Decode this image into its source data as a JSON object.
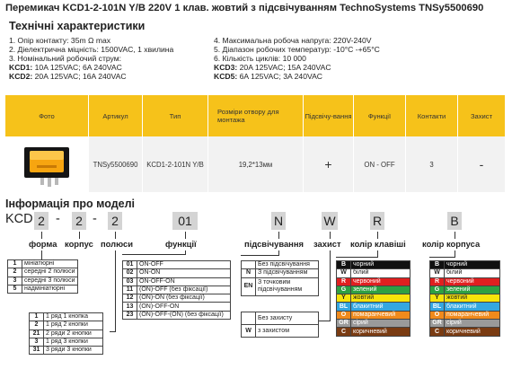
{
  "title": "Перемикач KCD1-2-101N Y/B 220V 1 клав. жовтий з підсвічуванням TechnoSystems TNSy5500690",
  "specs": {
    "heading": "Технічні характеристики",
    "left": [
      "1. Опір контакту: 35m Ω  max",
      "2. Діелектрична міцність:  1500VAC, 1 хвилина",
      "3. Номінальний робочий струм:"
    ],
    "kcd1_label": "KCD1:",
    "kcd1_value": " 10A 125VAC; 6A 240VAC",
    "kcd2_label": "KCD2:",
    "kcd2_value": " 20A 125VAC; 16A 240VAC",
    "right": [
      "4. Максимальна робоча напруга: 220V-240V",
      "5. Діапазон робочих температур: -10°C -+65°C",
      "6. Кількість циклів: 10 000"
    ],
    "kcd3_label": "KCD3:",
    "kcd3_value": " 20A 125VAC; 15A 240VAC",
    "kcd5_label": "KCD5:",
    "kcd5_value": " 6A 125VAC; 3A 240VAC"
  },
  "table": {
    "headers": [
      "Фото",
      "Артикул",
      "Тип",
      "Розміри отвору для монтажа",
      "Підсвічу-вання",
      "Функції",
      "Контакти",
      "Захист"
    ],
    "row": {
      "article": "TNSy5500690",
      "type": "KCD1-2-101N Y/B",
      "size": "19,2*13мм",
      "backlight": "+",
      "function": "ON - OFF",
      "contacts": "3",
      "protection": "-"
    }
  },
  "model": {
    "heading": "Інформація про моделі",
    "prefix": "KCD",
    "parts": [
      "2",
      "-",
      "2",
      "-",
      "2",
      "01",
      "N",
      "W",
      "R",
      "B"
    ],
    "labels": {
      "form": "форма",
      "body": "корпус",
      "poles": "полюси",
      "functions": "функції",
      "backlight": "підсвічування",
      "protection": "захист",
      "key_color": "колір клавіші",
      "body_color": "колір корпуса"
    },
    "form_rows": [
      {
        "k": "1",
        "v": "мініатюрні"
      },
      {
        "k": "2",
        "v": "середні 2 полюси"
      },
      {
        "k": "3",
        "v": "середні 3 полюси"
      },
      {
        "k": "5",
        "v": "надмініатюрні"
      }
    ],
    "function_rows": [
      {
        "k": "01",
        "v": "ON-OFF"
      },
      {
        "k": "02",
        "v": "ON-ON"
      },
      {
        "k": "03",
        "v": "ON-OFF-ON"
      },
      {
        "k": "11",
        "v": "(ON)-OFF (без фіксації)"
      },
      {
        "k": "12",
        "v": "(ON)-ON (без фіксації)"
      },
      {
        "k": "13",
        "v": "(ON)-OFF-ON"
      },
      {
        "k": "23",
        "v": "(ON)-OFF-(ON) (без фіксації)"
      }
    ],
    "pole_rows": [
      {
        "k": "1",
        "v": "1 ряд 1 кнопка"
      },
      {
        "k": "2",
        "v": "1 ряд 2 кнопки"
      },
      {
        "k": "21",
        "v": "2 ряди 2 кнопки"
      },
      {
        "k": "3",
        "v": "1 ряд 3 кнопки"
      },
      {
        "k": "31",
        "v": "3 ряди 3 кнопки"
      }
    ],
    "backlight_rows": [
      {
        "k": "",
        "v": "Без підсвічування"
      },
      {
        "k": "N",
        "v": "З підсвічуванням"
      },
      {
        "k": "EN",
        "v": "З точковим підсвічуванням"
      }
    ],
    "protection_rows": [
      {
        "k": "",
        "v": "Без захисту"
      },
      {
        "k": "W",
        "v": "з захистом"
      }
    ],
    "key_colors": [
      {
        "k": "B",
        "v": "чорний",
        "color": "#111111",
        "fg": "#ffffff"
      },
      {
        "k": "W",
        "v": "білий",
        "color": "#ffffff",
        "fg": "#222222"
      },
      {
        "k": "R",
        "v": "червоний",
        "color": "#e02020",
        "fg": "#ffffff"
      },
      {
        "k": "G",
        "v": "зелений",
        "color": "#2ea043",
        "fg": "#ffffff"
      },
      {
        "k": "Y",
        "v": "жовтий",
        "color": "#f6e40a",
        "fg": "#222222"
      },
      {
        "k": "BL",
        "v": "блакитний",
        "color": "#35a7e0",
        "fg": "#ffffff"
      },
      {
        "k": "O",
        "v": "помаранчевий",
        "color": "#f08a1c",
        "fg": "#ffffff"
      },
      {
        "k": "GR",
        "v": "сірий",
        "color": "#9a9a9a",
        "fg": "#ffffff"
      },
      {
        "k": "C",
        "v": "коричневий",
        "color": "#7a3b12",
        "fg": "#ffffff"
      }
    ],
    "body_colors": [
      {
        "k": "B",
        "v": "чорний",
        "color": "#111111",
        "fg": "#ffffff"
      },
      {
        "k": "W",
        "v": "білий",
        "color": "#ffffff",
        "fg": "#222222"
      },
      {
        "k": "R",
        "v": "червоний",
        "color": "#e02020",
        "fg": "#ffffff"
      },
      {
        "k": "G",
        "v": "зелений",
        "color": "#2ea043",
        "fg": "#ffffff"
      },
      {
        "k": "Y",
        "v": "жовтий",
        "color": "#f6e40a",
        "fg": "#222222"
      },
      {
        "k": "BL",
        "v": "блакитний",
        "color": "#35a7e0",
        "fg": "#ffffff"
      },
      {
        "k": "O",
        "v": "помаранчевий",
        "color": "#f08a1c",
        "fg": "#ffffff"
      },
      {
        "k": "GR",
        "v": "сірий",
        "color": "#9a9a9a",
        "fg": "#ffffff"
      },
      {
        "k": "C",
        "v": "коричневий",
        "color": "#7a3b12",
        "fg": "#ffffff"
      }
    ]
  }
}
